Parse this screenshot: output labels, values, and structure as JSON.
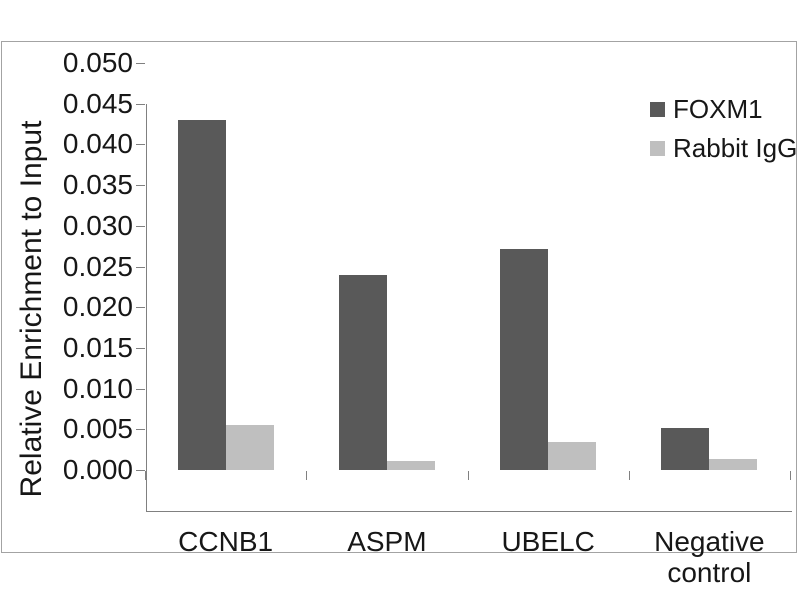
{
  "figure": {
    "background_color": "#ffffff",
    "frame_border_color": "#a3a3a3",
    "axis_color": "#808080",
    "text_color": "#171717"
  },
  "chart_data": {
    "type": "bar",
    "title": "",
    "xlabel": "",
    "ylabel": "Relative Enrichment to Input",
    "ylim": [
      0,
      0.05
    ],
    "ytick_step": 0.005,
    "ytick_labels": [
      "0.050",
      "0.045",
      "0.040",
      "0.035",
      "0.030",
      "0.025",
      "0.020",
      "0.015",
      "0.010",
      "0.005",
      "0.000"
    ],
    "categories": [
      "CCNB1",
      "ASPM",
      "UBELC",
      "Negative control"
    ],
    "series": [
      {
        "name": "FOXM1",
        "color": "#595959",
        "values": [
          0.043,
          0.024,
          0.0272,
          0.0052
        ]
      },
      {
        "name": "Rabbit IgG",
        "color": "#bfbfbf",
        "values": [
          0.0055,
          0.0011,
          0.0035,
          0.0013
        ]
      }
    ],
    "legend_position": "top-right",
    "grid": false
  }
}
